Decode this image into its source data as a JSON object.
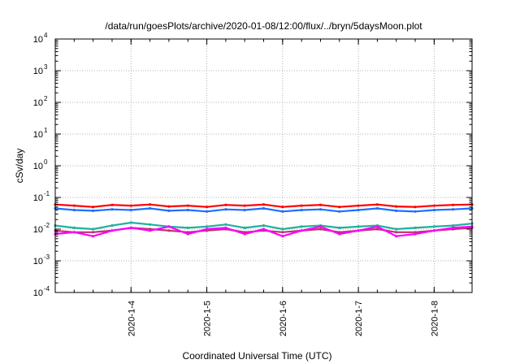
{
  "chart_data": {
    "type": "line",
    "title": "/data/run/goesPlots/archive/2020-01-08/12:00/flux/../bryn/5daysMoon.plot",
    "xlabel": "Coordinated Universal Time (UTC)",
    "ylabel": "cSv/day",
    "y_scale": "log",
    "ylim": [
      0.0001,
      10000
    ],
    "y_ticks": [
      {
        "base": "10",
        "exp": "-4",
        "value": 0.0001
      },
      {
        "base": "10",
        "exp": "-3",
        "value": 0.001
      },
      {
        "base": "10",
        "exp": "-2",
        "value": 0.01
      },
      {
        "base": "10",
        "exp": "-1",
        "value": 0.1
      },
      {
        "base": "10",
        "exp": "0",
        "value": 1
      },
      {
        "base": "10",
        "exp": "1",
        "value": 10
      },
      {
        "base": "10",
        "exp": "2",
        "value": 100
      },
      {
        "base": "10",
        "exp": "3",
        "value": 1000
      },
      {
        "base": "10",
        "exp": "4",
        "value": 10000
      }
    ],
    "x_type": "time",
    "xlim": [
      "2020-01-03 00:00",
      "2020-01-08 12:00"
    ],
    "x_ticks": [
      {
        "label": "2020-1-4",
        "value": "2020-01-04 00:00"
      },
      {
        "label": "2020-1-5",
        "value": "2020-01-05 00:00"
      },
      {
        "label": "2020-1-6",
        "value": "2020-01-06 00:00"
      },
      {
        "label": "2020-1-7",
        "value": "2020-01-07 00:00"
      },
      {
        "label": "2020-1-8",
        "value": "2020-01-08 00:00"
      }
    ],
    "grid": true,
    "legend": "none",
    "x": [
      "2020-01-03 00:00",
      "2020-01-03 06:00",
      "2020-01-03 12:00",
      "2020-01-03 18:00",
      "2020-01-04 00:00",
      "2020-01-04 06:00",
      "2020-01-04 12:00",
      "2020-01-04 18:00",
      "2020-01-05 00:00",
      "2020-01-05 06:00",
      "2020-01-05 12:00",
      "2020-01-05 18:00",
      "2020-01-06 00:00",
      "2020-01-06 06:00",
      "2020-01-06 12:00",
      "2020-01-06 18:00",
      "2020-01-07 00:00",
      "2020-01-07 06:00",
      "2020-01-07 12:00",
      "2020-01-07 18:00",
      "2020-01-08 00:00",
      "2020-01-08 06:00",
      "2020-01-08 12:00"
    ],
    "series": [
      {
        "color": "#ff0000",
        "values": [
          0.06,
          0.055,
          0.05,
          0.058,
          0.055,
          0.06,
          0.052,
          0.055,
          0.05,
          0.058,
          0.055,
          0.06,
          0.05,
          0.055,
          0.058,
          0.05,
          0.055,
          0.06,
          0.052,
          0.05,
          0.055,
          0.058,
          0.06
        ]
      },
      {
        "color": "#1f6fff",
        "values": [
          0.045,
          0.04,
          0.038,
          0.042,
          0.04,
          0.045,
          0.038,
          0.04,
          0.036,
          0.042,
          0.04,
          0.045,
          0.036,
          0.04,
          0.042,
          0.036,
          0.04,
          0.045,
          0.038,
          0.036,
          0.04,
          0.042,
          0.045
        ]
      },
      {
        "color": "#20b0a0",
        "values": [
          0.013,
          0.011,
          0.01,
          0.013,
          0.016,
          0.014,
          0.012,
          0.011,
          0.012,
          0.014,
          0.011,
          0.013,
          0.01,
          0.012,
          0.013,
          0.011,
          0.012,
          0.013,
          0.01,
          0.011,
          0.012,
          0.013,
          0.015
        ]
      },
      {
        "color": "#c03070",
        "values": [
          0.009,
          0.008,
          0.008,
          0.009,
          0.011,
          0.01,
          0.009,
          0.008,
          0.009,
          0.01,
          0.008,
          0.009,
          0.008,
          0.009,
          0.01,
          0.008,
          0.009,
          0.01,
          0.008,
          0.008,
          0.009,
          0.01,
          0.011
        ]
      },
      {
        "color": "#ff00ff",
        "values": [
          0.007,
          0.008,
          0.006,
          0.009,
          0.011,
          0.009,
          0.012,
          0.007,
          0.01,
          0.011,
          0.007,
          0.01,
          0.006,
          0.009,
          0.012,
          0.007,
          0.009,
          0.012,
          0.006,
          0.007,
          0.009,
          0.011,
          0.012
        ]
      }
    ]
  }
}
